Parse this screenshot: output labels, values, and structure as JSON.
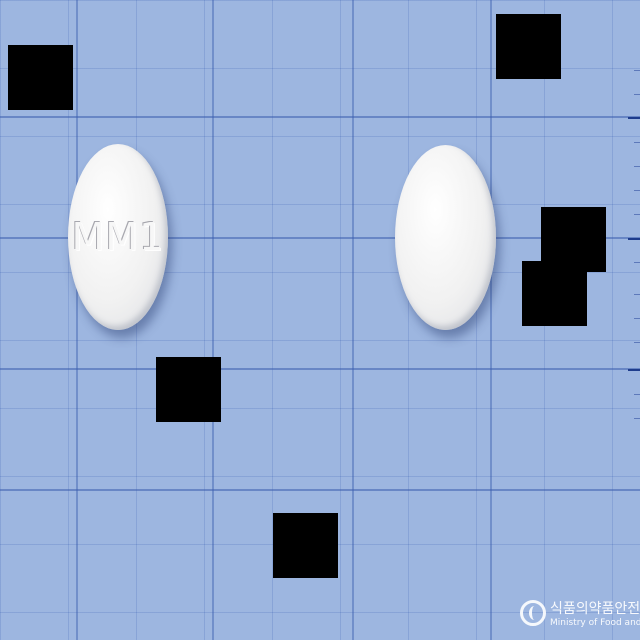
{
  "scene": {
    "background_color": "#9db6e0",
    "grid_color": "#3c5faf",
    "tablet_color": "#f2f2f2",
    "redaction_color": "#000000"
  },
  "tablets": [
    {
      "name": "tablet-front",
      "imprint": "MM1"
    },
    {
      "name": "tablet-back",
      "imprint": ""
    }
  ],
  "watermark": {
    "org_ko": "식품의약품안전처",
    "org_en": "Ministry of Food and Drug S"
  }
}
